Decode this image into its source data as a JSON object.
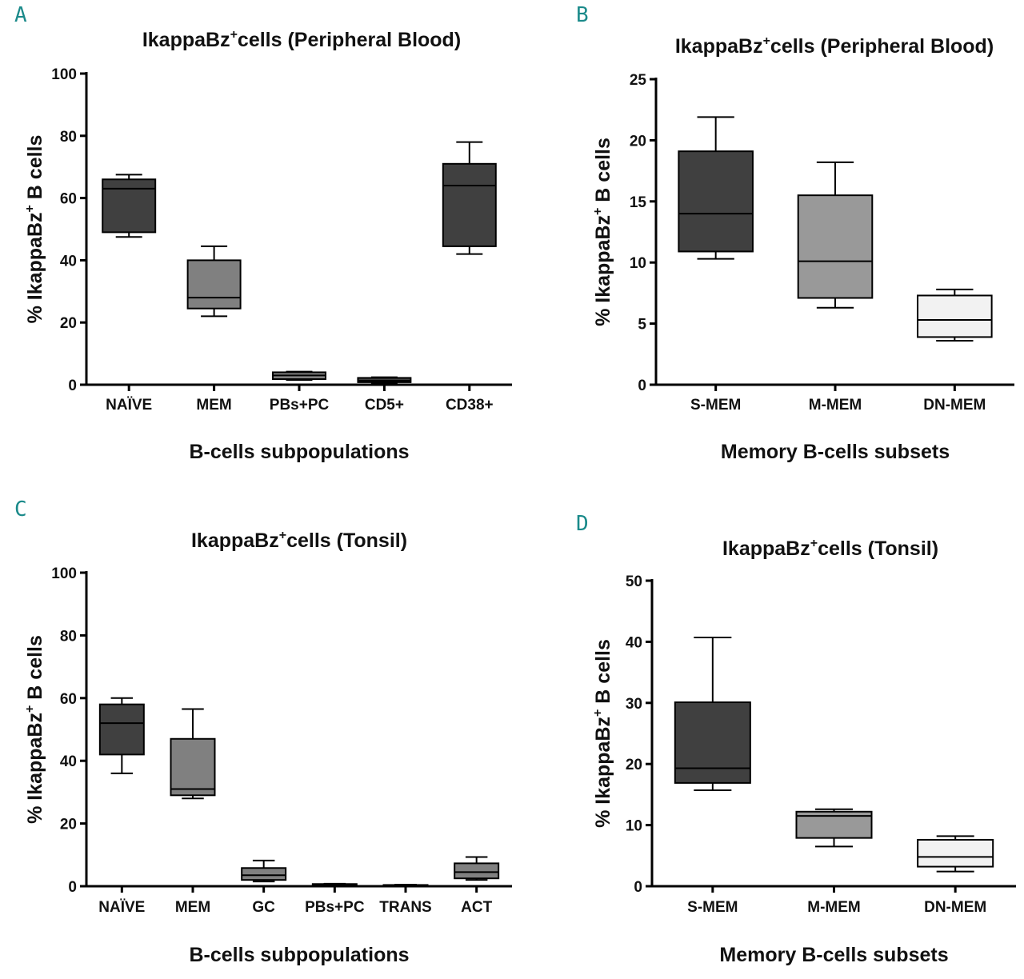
{
  "chart_data": [
    {
      "panel": "A",
      "type": "box",
      "title_main": "IkappaBz",
      "title_sup": "+",
      "title_rest": "cells (Peripheral Blood)",
      "xlabel": "B-cells subpopulations",
      "ylabel_main": "% IkappaBz",
      "ylabel_sup": "+",
      "ylabel_rest": " B cells",
      "ylim": [
        0,
        100
      ],
      "yticks": [
        0,
        20,
        40,
        60,
        80,
        100
      ],
      "categories": [
        "NAÏVE",
        "MEM",
        "PBs+PC",
        "CD5+",
        "CD38+"
      ],
      "boxes": [
        {
          "min": 47.5,
          "q1": 49,
          "median": 63,
          "q3": 66,
          "max": 67.5,
          "color": "#404040"
        },
        {
          "min": 22,
          "q1": 24.5,
          "median": 28,
          "q3": 40,
          "max": 44.5,
          "color": "#808080"
        },
        {
          "min": 1.5,
          "q1": 1.8,
          "median": 3,
          "q3": 4,
          "max": 4.2,
          "color": "#808080"
        },
        {
          "min": 0.5,
          "q1": 0.8,
          "median": 1.3,
          "q3": 2.2,
          "max": 2.4,
          "color": "#404040"
        },
        {
          "min": 42,
          "q1": 44.5,
          "median": 64,
          "q3": 71,
          "max": 78,
          "color": "#404040"
        }
      ]
    },
    {
      "panel": "B",
      "type": "box",
      "title_main": "IkappaBz",
      "title_sup": "+",
      "title_rest": "cells (Peripheral Blood)",
      "xlabel": "Memory B-cells subsets",
      "ylabel_main": "% IkappaBz",
      "ylabel_sup": "+",
      "ylabel_rest": " B cells",
      "ylim": [
        0,
        25
      ],
      "yticks": [
        0,
        5,
        10,
        15,
        20,
        25
      ],
      "categories": [
        "S-MEM",
        "M-MEM",
        "DN-MEM"
      ],
      "boxes": [
        {
          "min": 10.3,
          "q1": 10.9,
          "median": 14,
          "q3": 19.1,
          "max": 21.9,
          "color": "#404040"
        },
        {
          "min": 6.3,
          "q1": 7.1,
          "median": 10.1,
          "q3": 15.5,
          "max": 18.2,
          "color": "#999999"
        },
        {
          "min": 3.6,
          "q1": 3.9,
          "median": 5.3,
          "q3": 7.3,
          "max": 7.8,
          "color": "#f2f2f2"
        }
      ]
    },
    {
      "panel": "C",
      "type": "box",
      "title_main": "IkappaBz",
      "title_sup": "+",
      "title_rest": "cells (Tonsil)",
      "xlabel": "B-cells subpopulations",
      "ylabel_main": "% IkappaBz",
      "ylabel_sup": "+",
      "ylabel_rest": " B cells",
      "ylim": [
        0,
        100
      ],
      "yticks": [
        0,
        20,
        40,
        60,
        80,
        100
      ],
      "categories": [
        "NAÏVE",
        "MEM",
        "GC",
        "PBs+PC",
        "TRANS",
        "ACT"
      ],
      "boxes": [
        {
          "min": 36,
          "q1": 42,
          "median": 52,
          "q3": 58,
          "max": 60,
          "color": "#404040"
        },
        {
          "min": 28,
          "q1": 29,
          "median": 31,
          "q3": 47,
          "max": 56.5,
          "color": "#808080"
        },
        {
          "min": 1.5,
          "q1": 2,
          "median": 3.5,
          "q3": 5.8,
          "max": 8.2,
          "color": "#808080"
        },
        {
          "min": 0.2,
          "q1": 0.3,
          "median": 0.5,
          "q3": 0.7,
          "max": 0.8,
          "color": "#808080"
        },
        {
          "min": 0.1,
          "q1": 0.2,
          "median": 0.3,
          "q3": 0.4,
          "max": 0.5,
          "color": "#808080"
        },
        {
          "min": 2,
          "q1": 2.5,
          "median": 4.5,
          "q3": 7.3,
          "max": 9.3,
          "color": "#808080"
        }
      ]
    },
    {
      "panel": "D",
      "type": "box",
      "title_main": "IkappaBz",
      "title_sup": "+",
      "title_rest": "cells (Tonsil)",
      "xlabel": "Memory B-cells subsets",
      "ylabel_main": "% IkappaBz",
      "ylabel_sup": "+",
      "ylabel_rest": " B cells",
      "ylim": [
        0,
        50
      ],
      "yticks": [
        0,
        10,
        20,
        30,
        40,
        50
      ],
      "categories": [
        "S-MEM",
        "M-MEM",
        "DN-MEM"
      ],
      "boxes": [
        {
          "min": 15.7,
          "q1": 16.9,
          "median": 19.3,
          "q3": 30.1,
          "max": 40.7,
          "color": "#404040"
        },
        {
          "min": 6.5,
          "q1": 7.9,
          "median": 11.5,
          "q3": 12.2,
          "max": 12.6,
          "color": "#999999"
        },
        {
          "min": 2.4,
          "q1": 3.2,
          "median": 4.8,
          "q3": 7.6,
          "max": 8.2,
          "color": "#f2f2f2"
        }
      ]
    }
  ],
  "panel_letters": [
    "A",
    "B",
    "C",
    "D"
  ]
}
